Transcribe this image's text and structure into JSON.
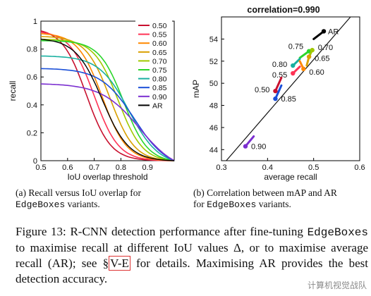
{
  "chart_data": [
    {
      "type": "line",
      "xlabel": "IoU overlap threshold",
      "ylabel": "recall",
      "xlim": [
        0.5,
        1.0
      ],
      "ylim": [
        0,
        1
      ],
      "xticks": [
        "0.5",
        "0.6",
        "0.7",
        "0.8",
        "0.9"
      ],
      "yticks": [
        "0",
        "0.2",
        "0.4",
        "0.6",
        "0.8",
        "1"
      ],
      "legend_position": "right",
      "series": [
        {
          "name": "0.50",
          "color": "#c8102e",
          "r0": 0.93,
          "k": 5.5,
          "t": 0.67
        },
        {
          "name": "0.55",
          "color": "#ff3355",
          "r0": 0.92,
          "k": 5.5,
          "t": 0.7
        },
        {
          "name": "0.60",
          "color": "#ff8800",
          "r0": 0.91,
          "k": 5.5,
          "t": 0.73
        },
        {
          "name": "0.65",
          "color": "#d9a000",
          "r0": 0.89,
          "k": 5.5,
          "t": 0.76
        },
        {
          "name": "0.70",
          "color": "#a0c800",
          "r0": 0.87,
          "k": 5.5,
          "t": 0.79
        },
        {
          "name": "0.75",
          "color": "#2bd62b",
          "r0": 0.86,
          "k": 5.5,
          "t": 0.81
        },
        {
          "name": "0.80",
          "color": "#19b0a0",
          "r0": 0.75,
          "k": 4.5,
          "t": 0.83
        },
        {
          "name": "0.85",
          "color": "#1a4fd8",
          "r0": 0.66,
          "k": 4.0,
          "t": 0.85
        },
        {
          "name": "0.90",
          "color": "#7b2fd0",
          "r0": 0.55,
          "k": 3.5,
          "t": 0.87
        },
        {
          "name": "AR",
          "color": "#000000",
          "r0": 0.87,
          "k": 5.0,
          "t": 0.73
        }
      ]
    },
    {
      "type": "scatter",
      "title": "correlation=0.990",
      "xlabel": "average recall",
      "ylabel": "mAP",
      "xlim": [
        0.3,
        0.6
      ],
      "ylim": [
        43,
        56
      ],
      "xticks": [
        "0.3",
        "0.4",
        "0.5",
        "0.6"
      ],
      "yticks": [
        "44",
        "46",
        "48",
        "50",
        "52",
        "54"
      ],
      "fit_line": {
        "from": [
          0.3,
          42.5
        ],
        "to": [
          0.58,
          56
        ]
      },
      "points": [
        {
          "label": "AR",
          "x": 0.522,
          "y": 54.7,
          "color": "#000000",
          "tail": [
            0.5,
            54.0
          ]
        },
        {
          "label": "0.75",
          "x": 0.49,
          "y": 52.9,
          "color": "#2bd62b",
          "tail": [
            0.47,
            52.3
          ]
        },
        {
          "label": "0.70",
          "x": 0.497,
          "y": 53.0,
          "color": "#a0c800",
          "tail": [
            0.49,
            52.4
          ]
        },
        {
          "label": "0.65",
          "x": 0.49,
          "y": 52.4,
          "color": "#d9a000",
          "tail": [
            0.485,
            51.6
          ]
        },
        {
          "label": "0.80",
          "x": 0.455,
          "y": 51.6,
          "color": "#19b0a0",
          "tail": [
            0.47,
            52.2
          ]
        },
        {
          "label": "0.60",
          "x": 0.478,
          "y": 51.3,
          "color": "#ff8800",
          "tail": [
            0.47,
            52.0
          ]
        },
        {
          "label": "0.55",
          "x": 0.455,
          "y": 50.9,
          "color": "#ff3355",
          "tail": [
            0.47,
            51.5
          ]
        },
        {
          "label": "0.50",
          "x": 0.417,
          "y": 49.3,
          "color": "#c8102e",
          "tail": [
            0.43,
            50.5
          ]
        },
        {
          "label": "0.85",
          "x": 0.417,
          "y": 48.6,
          "color": "#1a4fd8",
          "tail": [
            0.43,
            49.8
          ]
        },
        {
          "label": "0.90",
          "x": 0.352,
          "y": 44.3,
          "color": "#7b2fd0",
          "tail": [
            0.37,
            45.2
          ]
        }
      ]
    }
  ],
  "captions": {
    "a_text": "(a) Recall versus IoU overlap for",
    "a_mono": "EdgeBoxes",
    "a_tail": "variants.",
    "b_text": "(b) Correlation between mAP and AR",
    "b_pre": "for",
    "b_mono": "EdgeBoxes",
    "b_tail": "variants."
  },
  "figure_caption": {
    "p1": "Figure 13: R-CNN detection performance after fine-tuning",
    "mono": "EdgeBoxes",
    "p2": "to maximise recall at different IoU values Δ, or to maximise average recall (AR); see §",
    "link": "V-E",
    "p3": "for details. Maximising AR provides the best detection accuracy."
  },
  "watermark": "计算机视觉战队"
}
